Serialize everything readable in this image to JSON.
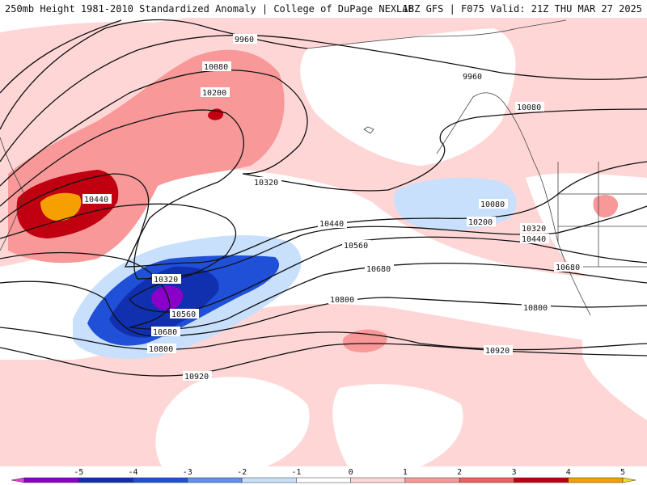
{
  "header": {
    "title_left": "250mb Height 1981-2010 Standardized Anomaly | College of DuPage NEXLAB",
    "title_right": "18Z GFS | F075 Valid: 21Z THU MAR 27 2025"
  },
  "contour_labels": [
    "9960",
    "10080",
    "10200",
    "10320",
    "10440",
    "10560",
    "10680",
    "10800",
    "10920"
  ],
  "colorbar": {
    "ticks": [
      "-5",
      "-4",
      "-3",
      "-2",
      "-1",
      "0",
      "1",
      "2",
      "3",
      "4",
      "5"
    ],
    "colors": [
      "#e040e0",
      "#8a00c8",
      "#1030b0",
      "#2050d8",
      "#6090f0",
      "#c8e0fc",
      "#ffffff",
      "#ffd6d6",
      "#f89898",
      "#f06060",
      "#c00010",
      "#f5a000",
      "#f0e020"
    ]
  },
  "colors": {
    "neg1": "#c8e0fc",
    "neg2": "#6090f0",
    "neg3": "#2050d8",
    "neg4": "#1030b0",
    "neg5": "#8a00c8",
    "pos1": "#ffd6d6",
    "pos2": "#f89898",
    "pos3": "#f06060",
    "pos4": "#c00010",
    "pos5": "#f5a000"
  }
}
